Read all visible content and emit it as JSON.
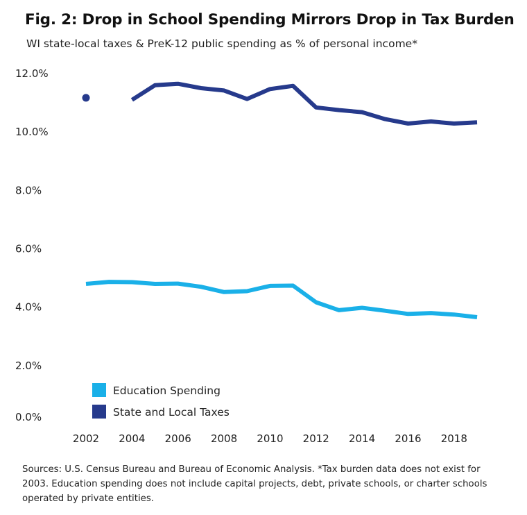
{
  "title": "Fig. 2: Drop in School Spending Mirrors Drop in Tax Burden",
  "subtitle": "WI state-local taxes & PreK-12 public spending as % of personal income*",
  "source_note": "Sources: U.S. Census Bureau and Bureau of Economic Analysis. *Tax burden data does not exist for 2003. Education spending does not include capital projects, debt, private schools, or charter schools operated by private entities.",
  "chart_data": {
    "type": "line",
    "title": "Fig. 2: Drop in School Spending Mirrors Drop in Tax Burden",
    "xlabel": "",
    "ylabel": "",
    "ylim": [
      0,
      12
    ],
    "xlim": [
      2002,
      2019
    ],
    "y_ticks": [
      0,
      2,
      4,
      6,
      8,
      10,
      12
    ],
    "y_tick_labels": [
      "0.0%",
      "2.0%",
      "4.0%",
      "6.0%",
      "8.0%",
      "10.0%",
      "12.0%"
    ],
    "x_ticks": [
      2002,
      2004,
      2006,
      2008,
      2010,
      2012,
      2014,
      2016,
      2018
    ],
    "x_tick_labels": [
      "2002",
      "2004",
      "2006",
      "2008",
      "2010",
      "2012",
      "2014",
      "2016",
      "2018"
    ],
    "x": [
      2002,
      2003,
      2004,
      2005,
      2006,
      2007,
      2008,
      2009,
      2010,
      2011,
      2012,
      2013,
      2014,
      2015,
      2016,
      2017,
      2018,
      2019
    ],
    "series": [
      {
        "name": "Education Spending",
        "color": "#1ab0e8",
        "values": [
          4.8,
          4.87,
          4.86,
          4.8,
          4.81,
          4.7,
          4.52,
          4.55,
          4.73,
          4.74,
          4.17,
          3.9,
          3.98,
          3.88,
          3.77,
          3.8,
          3.75,
          3.66
        ]
      },
      {
        "name": "State and Local Taxes",
        "color": "#263a8c",
        "values": [
          11.17,
          null,
          11.1,
          11.6,
          11.65,
          11.5,
          11.42,
          11.13,
          11.47,
          11.58,
          10.84,
          10.75,
          10.68,
          10.44,
          10.29,
          10.36,
          10.29,
          10.33
        ]
      }
    ],
    "legend": {
      "position": "bottom-left",
      "entries": [
        "Education Spending",
        "State and Local Taxes"
      ]
    },
    "grid": false
  }
}
